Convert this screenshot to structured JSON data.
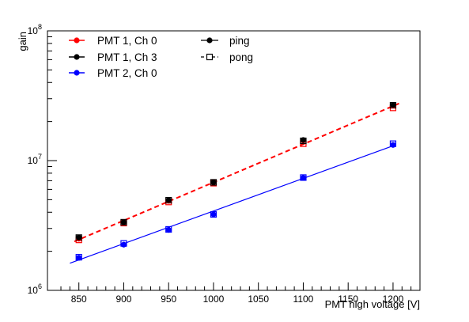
{
  "chart_data": {
    "type": "scatter",
    "xlabel": "PMT high voltage [V]",
    "ylabel": "gain",
    "xlim": [
      815,
      1230
    ],
    "ylim": [
      1000000,
      100000000
    ],
    "yscale": "log",
    "grid": false,
    "legend_position": "top-left",
    "x_ticks": [
      850,
      900,
      950,
      1000,
      1050,
      1100,
      1150,
      1200
    ],
    "x_tick_labels": [
      "850",
      "900",
      "950",
      "1000",
      "1050",
      "1100",
      "1150",
      "1200"
    ],
    "y_ticks": [
      {
        "value": 1000000,
        "base": "10",
        "exp": "6"
      },
      {
        "value": 10000000,
        "base": "10",
        "exp": "7"
      },
      {
        "value": 100000000,
        "base": "10",
        "exp": "8"
      }
    ],
    "series": [
      {
        "name": "PMT 1, Ch 0",
        "color": "#ff0000",
        "x": [
          850,
          900,
          950,
          1000,
          1100,
          1200
        ],
        "ping": [
          2500000,
          3350000,
          4900000,
          6800000,
          14300000,
          26500000
        ],
        "pong": [
          2450000,
          3300000,
          4800000,
          6700000,
          13500000,
          25500000
        ]
      },
      {
        "name": "PMT 1, Ch 3",
        "color": "#000000",
        "x": [
          850,
          900,
          950,
          1000,
          1100,
          1200
        ],
        "ping": [
          2550000,
          3350000,
          4950000,
          6800000,
          14400000,
          26800000
        ],
        "pong": [
          2550000,
          3350000,
          4950000,
          6800000,
          14200000,
          26700000
        ]
      },
      {
        "name": "PMT 2, Ch 0",
        "color": "#0000ff",
        "x": [
          850,
          900,
          950,
          1000,
          1100,
          1200
        ],
        "ping": [
          1780000,
          2250000,
          2920000,
          3850000,
          7350000,
          13200000
        ],
        "pong": [
          1800000,
          2300000,
          2950000,
          3850000,
          7400000,
          13500000
        ]
      }
    ],
    "fits": [
      {
        "color": "#ff0000",
        "style": "dashed",
        "x": [
          845,
          1208
        ],
        "y": [
          2380000,
          27800000
        ]
      },
      {
        "color": "#0000ff",
        "style": "solid",
        "x": [
          840,
          1200
        ],
        "y": [
          1620000,
          13000000
        ]
      }
    ],
    "legend": {
      "entries": [
        "PMT 1, Ch 0",
        "PMT 1, Ch 3",
        "PMT 2, Ch 0"
      ],
      "styles": [
        {
          "label": "ping",
          "line": "solid",
          "marker": "filled-circle"
        },
        {
          "label": "pong",
          "line": "dashed",
          "marker": "open-square"
        }
      ]
    }
  }
}
